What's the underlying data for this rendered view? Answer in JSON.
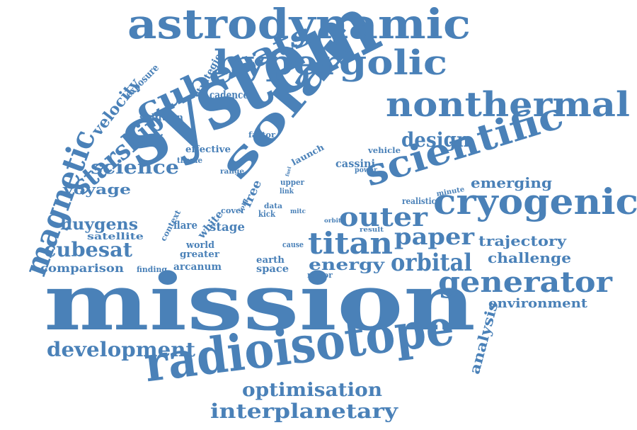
{
  "color": "#4a81b8",
  "words": [
    {
      "text": "mission"
    },
    {
      "text": "system"
    },
    {
      "text": "solar"
    },
    {
      "text": "astrodynamic"
    },
    {
      "text": "hypergolic"
    },
    {
      "text": "nonthermal"
    },
    {
      "text": "scientific"
    },
    {
      "text": "cryogenic"
    },
    {
      "text": "radioisotope"
    },
    {
      "text": "cubesats"
    },
    {
      "text": "generator"
    },
    {
      "text": "magnetic"
    },
    {
      "text": "starship"
    },
    {
      "text": "titan"
    },
    {
      "text": "outer"
    },
    {
      "text": "paper"
    },
    {
      "text": "orbital"
    },
    {
      "text": "development"
    },
    {
      "text": "interplanetary"
    },
    {
      "text": "optimisation"
    },
    {
      "text": "design"
    },
    {
      "text": "cubesat"
    },
    {
      "text": "velocity"
    },
    {
      "text": "science"
    },
    {
      "text": "emerging"
    },
    {
      "text": "trajectory"
    },
    {
      "text": "challenge"
    },
    {
      "text": "energy"
    },
    {
      "text": "environment"
    },
    {
      "text": "analysis"
    },
    {
      "text": "huygens"
    },
    {
      "text": "voyage"
    },
    {
      "text": "comparison"
    },
    {
      "text": "exposure"
    },
    {
      "text": "strategies"
    },
    {
      "text": "cadence"
    },
    {
      "text": "solution"
    },
    {
      "text": "effective"
    },
    {
      "text": "theme"
    },
    {
      "text": "factor"
    },
    {
      "text": "launch"
    },
    {
      "text": "vehicle"
    },
    {
      "text": "cassini"
    },
    {
      "text": "power"
    },
    {
      "text": "range"
    },
    {
      "text": "upper"
    },
    {
      "text": "link"
    },
    {
      "text": "realistic"
    },
    {
      "text": "minute"
    },
    {
      "text": "satellite"
    },
    {
      "text": "flare"
    },
    {
      "text": "white"
    },
    {
      "text": "context"
    },
    {
      "text": "stage"
    },
    {
      "text": "free"
    },
    {
      "text": "cover"
    },
    {
      "text": "fold"
    },
    {
      "text": "data"
    },
    {
      "text": "kick"
    },
    {
      "text": "mitc"
    },
    {
      "text": "orbit"
    },
    {
      "text": "result"
    },
    {
      "text": "world"
    },
    {
      "text": "greater"
    },
    {
      "text": "earth"
    },
    {
      "text": "cause"
    },
    {
      "text": "space"
    },
    {
      "text": "finding"
    },
    {
      "text": "arcanum"
    },
    {
      "text": "major"
    },
    {
      "text": "fuel"
    }
  ]
}
